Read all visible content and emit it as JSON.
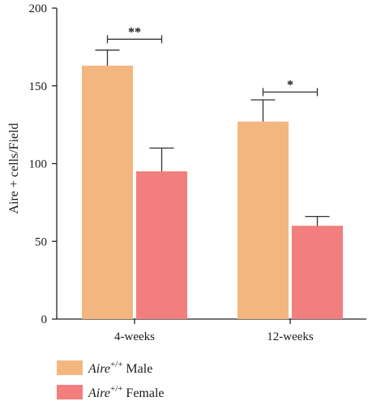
{
  "chart_data": {
    "type": "bar",
    "ylabel": "Aire + cells/Field",
    "ylim": [
      0,
      200
    ],
    "yticks": [
      0,
      50,
      100,
      150,
      200
    ],
    "categories": [
      "4-weeks",
      "12-weeks"
    ],
    "series": [
      {
        "name_italic": "Aire",
        "name_sup": "+/+",
        "name_rest": "Male",
        "color": "#F4B67F",
        "values": [
          163,
          127
        ],
        "errors": [
          10,
          14
        ]
      },
      {
        "name_italic": "Aire",
        "name_sup": "+/+",
        "name_rest": "Female",
        "color": "#F27E7E",
        "values": [
          95,
          60
        ],
        "errors": [
          15,
          6
        ]
      }
    ],
    "significance": [
      {
        "category": "4-weeks",
        "label": "**",
        "y": 180
      },
      {
        "category": "12-weeks",
        "label": "*",
        "y": 146
      }
    ],
    "grid": false,
    "legend_position": "bottom-left"
  }
}
